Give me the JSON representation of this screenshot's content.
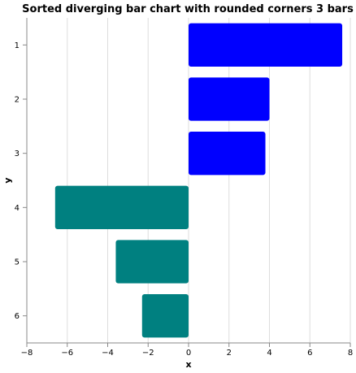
{
  "chart_data": {
    "type": "bar",
    "orientation": "horizontal",
    "title": "Sorted diverging bar chart with rounded corners 3 bars",
    "xlabel": "x",
    "ylabel": "y",
    "xlim": [
      -8,
      8
    ],
    "xticks": [
      -8,
      -6,
      -4,
      -2,
      0,
      2,
      4,
      6,
      8
    ],
    "grid": true,
    "categories": [
      "1",
      "2",
      "3",
      "4",
      "5",
      "6"
    ],
    "values": [
      7.6,
      4.0,
      3.8,
      -6.6,
      -3.6,
      -2.3
    ],
    "colors": {
      "positive": "#0000ff",
      "negative": "#008080"
    }
  }
}
